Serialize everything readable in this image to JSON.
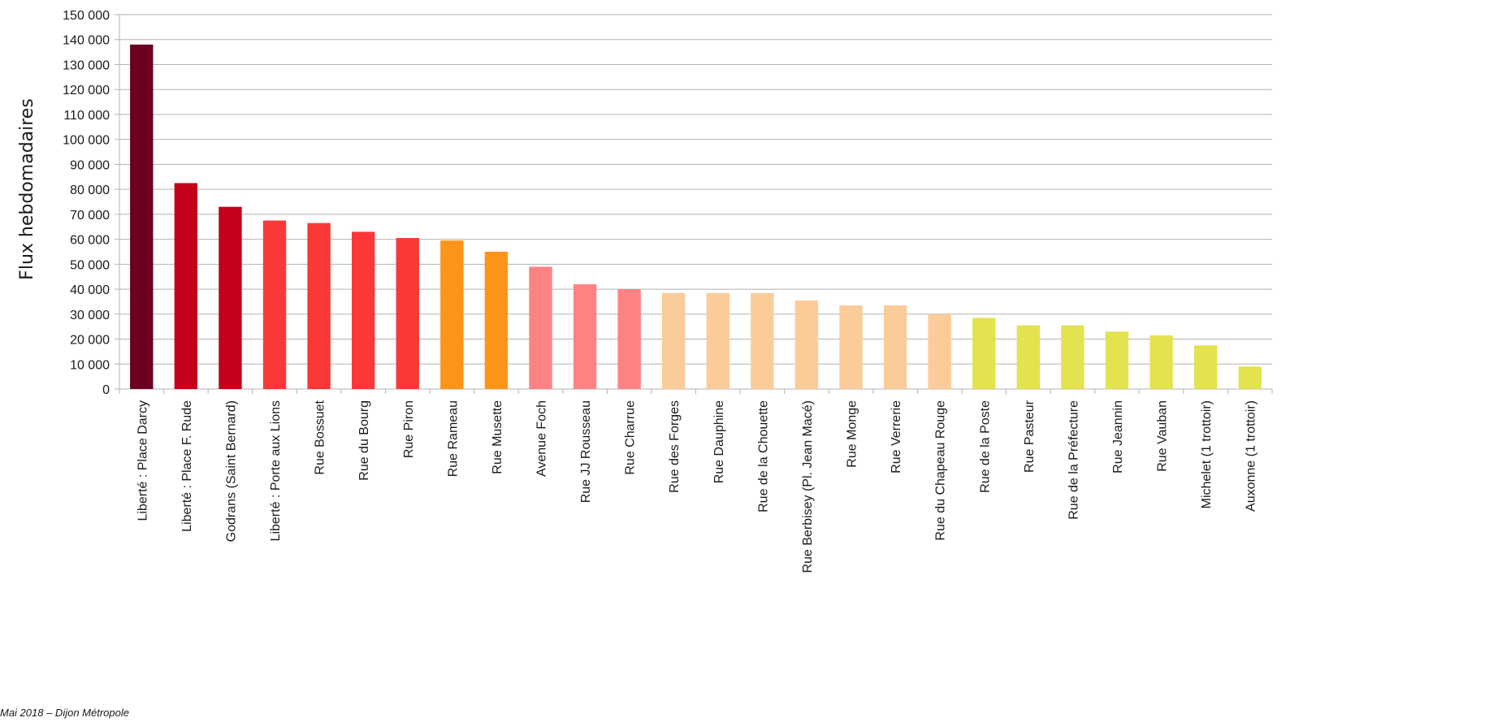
{
  "chart_data": {
    "type": "bar",
    "ylabel": "Flux hebdomadaires",
    "xlabel": "",
    "ylim": [
      0,
      150000
    ],
    "ytick_step": 10000,
    "ytick_labels": [
      "0",
      "10 000",
      "20 000",
      "30 000",
      "40 000",
      "50 000",
      "60 000",
      "70 000",
      "80 000",
      "90 000",
      "100 000",
      "110 000",
      "120 000",
      "130 000",
      "140 000",
      "150 000"
    ],
    "grid": true,
    "categories": [
      "Liberté : Place Darcy",
      "Liberté : Place F. Rude",
      "Godrans (Saint Bernard)",
      "Liberté : Porte aux Lions",
      "Rue Bossuet",
      "Rue du Bourg",
      "Rue Piron",
      "Rue Rameau",
      "Rue Musette",
      "Avenue Foch",
      "Rue JJ Rousseau",
      "Rue Charrue",
      "Rue des Forges",
      "Rue Dauphine",
      "Rue de la Chouette",
      "Rue Berbisey (Pl. Jean Macé)",
      "Rue Monge",
      "Rue Verrerie",
      "Rue du Chapeau Rouge",
      "Rue de la Poste",
      "Rue Pasteur",
      "Rue de la Préfecture",
      "Rue Jeannin",
      "Rue Vauban",
      "Michelet (1 trottoir)",
      "Auxonne (1 trottoir)"
    ],
    "values": [
      138000,
      82500,
      73000,
      67500,
      66500,
      63000,
      60500,
      59500,
      55000,
      49000,
      42000,
      40000,
      38500,
      38500,
      38500,
      35500,
      33500,
      33500,
      30000,
      28500,
      25500,
      25500,
      23000,
      21500,
      17500,
      9000
    ],
    "bar_colors": [
      "#6b0020",
      "#c4001a",
      "#c4001a",
      "#fa3838",
      "#fa3838",
      "#fa3838",
      "#fa3838",
      "#fb9418",
      "#fb9418",
      "#fd8383",
      "#fd8383",
      "#fd8383",
      "#fccb9a",
      "#fccb9a",
      "#fccb9a",
      "#fccb9a",
      "#fccb9a",
      "#fccb9a",
      "#fccb9a",
      "#e3e24f",
      "#e3e24f",
      "#e3e24f",
      "#e3e24f",
      "#e3e24f",
      "#e3e24f",
      "#e3e24f"
    ]
  },
  "footnote": "Mai 2018 – Dijon Métropole"
}
